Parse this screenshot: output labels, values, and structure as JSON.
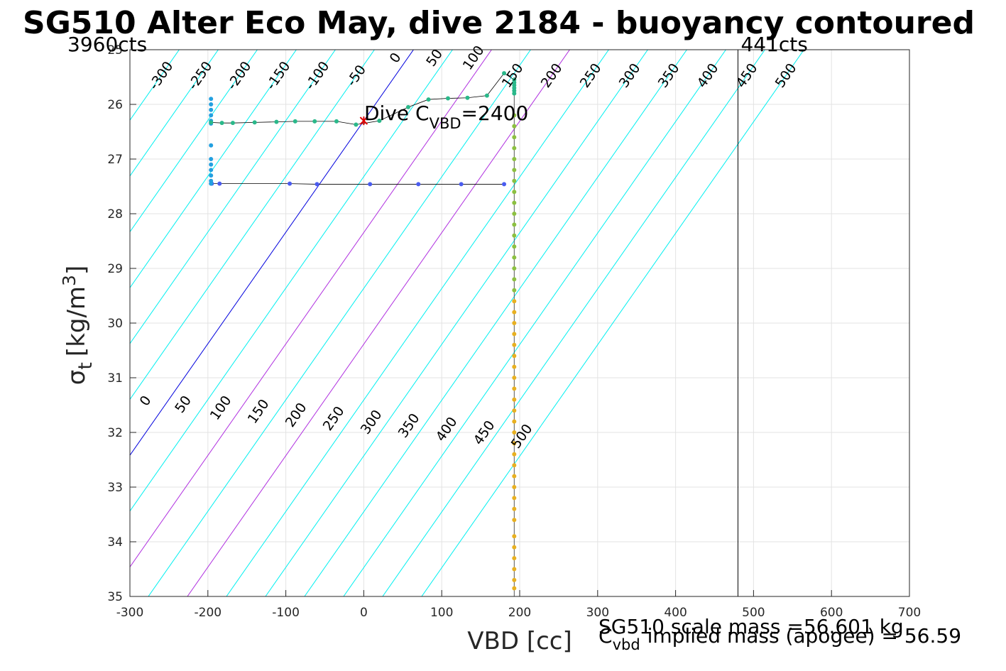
{
  "chart_data": {
    "type": "scatter",
    "title": "SG510 Alter Eco May, dive 2184 - buoyancy contoured",
    "xlabel": "VBD [cc]",
    "ylabel_symbol": "σ",
    "ylabel_sub": "t",
    "ylabel_units": "[kg/m",
    "ylabel_sup": "3",
    "ylabel_close": "]",
    "xlim": [
      -300,
      700
    ],
    "ylim": [
      25,
      35
    ],
    "y_reversed": true,
    "grid": true,
    "xticks": [
      -300,
      -200,
      -100,
      0,
      100,
      200,
      300,
      400,
      500,
      600,
      700
    ],
    "yticks": [
      25,
      26,
      27,
      28,
      29,
      30,
      31,
      32,
      33,
      34,
      35
    ],
    "contours": {
      "levels": [
        -300,
        -250,
        -200,
        -150,
        -100,
        -50,
        0,
        50,
        100,
        150,
        200,
        250,
        300,
        350,
        400,
        450,
        500
      ],
      "highlight_levels": [
        100,
        200
      ],
      "zero_color": "#0000dd",
      "highlight_color": "#b030e0",
      "line_color": "#00f0f0",
      "upper_label_levels": [
        "-300",
        "-250",
        "-200",
        "-150",
        "-100",
        "-50",
        "0",
        "50",
        "100",
        "150",
        "200",
        "250",
        "300",
        "350",
        "400",
        "450",
        "500"
      ],
      "lower_label_levels": [
        "0",
        "50",
        "100",
        "150",
        "200",
        "250",
        "300",
        "350",
        "400",
        "450",
        "500"
      ]
    },
    "vbd_limits": [
      {
        "label": "3960cts",
        "x": -300
      },
      {
        "label": "441cts",
        "x": 480
      }
    ],
    "series": [
      {
        "color": "#4a5cf0",
        "points": [
          [
            -195,
            27.45
          ],
          [
            -185,
            27.45
          ],
          [
            -95,
            27.45
          ],
          [
            -60,
            27.46
          ],
          [
            8,
            27.46
          ],
          [
            70,
            27.46
          ],
          [
            125,
            27.46
          ],
          [
            180,
            27.46
          ]
        ]
      },
      {
        "color": "#23a0e0",
        "points": [
          [
            -196,
            25.9
          ],
          [
            -196,
            26.0
          ],
          [
            -196,
            26.1
          ],
          [
            -196,
            26.2
          ],
          [
            -196,
            26.3
          ],
          [
            -196,
            26.35
          ],
          [
            -196,
            26.75
          ],
          [
            -196,
            27.0
          ],
          [
            -196,
            27.1
          ],
          [
            -196,
            27.2
          ],
          [
            -196,
            27.3
          ],
          [
            -196,
            27.4
          ],
          [
            -196,
            27.45
          ]
        ]
      },
      {
        "color": "#2ab88a",
        "points": [
          [
            -196,
            26.33
          ],
          [
            -182,
            26.34
          ],
          [
            -168,
            26.34
          ],
          [
            -140,
            26.33
          ],
          [
            -112,
            26.32
          ],
          [
            -88,
            26.31
          ],
          [
            -63,
            26.31
          ],
          [
            -35,
            26.31
          ],
          [
            -10,
            26.37
          ],
          [
            20,
            26.3
          ],
          [
            57,
            26.05
          ],
          [
            83,
            25.91
          ],
          [
            108,
            25.89
          ],
          [
            133,
            25.88
          ],
          [
            158,
            25.84
          ],
          [
            180,
            25.43
          ],
          [
            193,
            25.55
          ],
          [
            193,
            25.6
          ],
          [
            193,
            25.65
          ],
          [
            193,
            25.7
          ],
          [
            193,
            25.75
          ],
          [
            193,
            25.8
          ]
        ]
      },
      {
        "color": "#8cc040",
        "points": [
          [
            193,
            26.2
          ],
          [
            193,
            26.4
          ],
          [
            193,
            26.6
          ],
          [
            193,
            26.8
          ],
          [
            193,
            27.0
          ],
          [
            193,
            27.2
          ],
          [
            193,
            27.4
          ],
          [
            193,
            27.6
          ],
          [
            193,
            27.8
          ],
          [
            193,
            28.0
          ],
          [
            193,
            28.2
          ],
          [
            193,
            28.4
          ],
          [
            193,
            28.6
          ],
          [
            193,
            28.8
          ],
          [
            193,
            29.0
          ],
          [
            193,
            29.2
          ],
          [
            193,
            29.4
          ]
        ]
      },
      {
        "color": "#e8b020",
        "points": [
          [
            193,
            29.6
          ],
          [
            193,
            29.8
          ],
          [
            193,
            30.0
          ],
          [
            193,
            30.2
          ],
          [
            193,
            30.4
          ],
          [
            193,
            30.6
          ],
          [
            193,
            30.8
          ],
          [
            193,
            31.0
          ],
          [
            193,
            31.2
          ],
          [
            193,
            31.4
          ],
          [
            193,
            31.6
          ],
          [
            193,
            31.8
          ],
          [
            193,
            32.0
          ],
          [
            193,
            32.2
          ],
          [
            193,
            32.4
          ],
          [
            193,
            32.6
          ],
          [
            193,
            32.8
          ],
          [
            193,
            33.0
          ],
          [
            193,
            33.2
          ],
          [
            193,
            33.4
          ],
          [
            193,
            33.6
          ],
          [
            193,
            33.9
          ],
          [
            193,
            34.1
          ],
          [
            193,
            34.3
          ],
          [
            193,
            34.5
          ],
          [
            193,
            34.7
          ],
          [
            193,
            34.85
          ]
        ]
      }
    ],
    "dive_marker": {
      "x": 0,
      "y": 26.3,
      "color": "#dd0000"
    },
    "dive_label_prefix": "Dive C",
    "dive_label_sub": "VBD",
    "dive_label_suffix": "=2400",
    "implied_vbd_x": 193,
    "scale_mass_text": "SG510 scale mass =56.601 kg",
    "implied_prefix": "C",
    "implied_sub": "vbd",
    "implied_text": "implied mass (apogee) = 56.59"
  }
}
